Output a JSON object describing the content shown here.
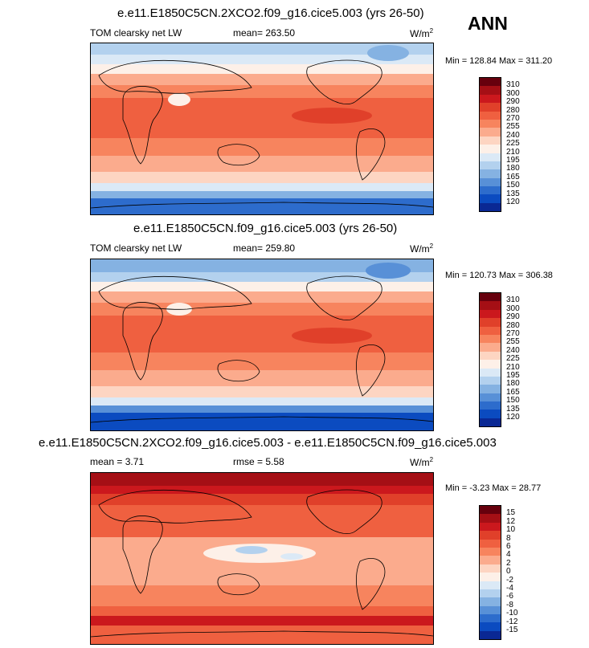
{
  "season_label": "ANN",
  "panels": [
    {
      "title": "e.e11.E1850C5CN.2XCO2.f09_g16.cice5.003 (yrs 26-50)",
      "variable": "TOM clearsky net LW",
      "stat_left": "",
      "mean": "mean= 263.50",
      "units_base": "W/m",
      "units_exp": "2",
      "minmax": "Min = 128.84 Max = 311.20",
      "colorbar": {
        "labels": [
          "310",
          "300",
          "290",
          "280",
          "270",
          "255",
          "240",
          "225",
          "210",
          "195",
          "180",
          "165",
          "150",
          "135",
          "120"
        ],
        "colors": [
          "#67000d",
          "#a50f15",
          "#cb181d",
          "#e0402a",
          "#ef6040",
          "#f7845e",
          "#fbab8d",
          "#fdd5c2",
          "#fdf0e8",
          "#dbe9f6",
          "#b3d1ee",
          "#85b2e2",
          "#5890d7",
          "#2d6ccc",
          "#0b4bc0",
          "#0a2894"
        ]
      }
    },
    {
      "title": "e.e11.E1850C5CN.f09_g16.cice5.003 (yrs 26-50)",
      "variable": "TOM clearsky net LW",
      "stat_left": "",
      "mean": "mean= 259.80",
      "units_base": "W/m",
      "units_exp": "2",
      "minmax": "Min = 120.73 Max = 306.38",
      "colorbar": {
        "labels": [
          "310",
          "300",
          "290",
          "280",
          "270",
          "255",
          "240",
          "225",
          "210",
          "195",
          "180",
          "165",
          "150",
          "135",
          "120"
        ],
        "colors": [
          "#67000d",
          "#a50f15",
          "#cb181d",
          "#e0402a",
          "#ef6040",
          "#f7845e",
          "#fbab8d",
          "#fdd5c2",
          "#fdf0e8",
          "#dbe9f6",
          "#b3d1ee",
          "#85b2e2",
          "#5890d7",
          "#2d6ccc",
          "#0b4bc0",
          "#0a2894"
        ]
      }
    },
    {
      "title": "e.e11.E1850C5CN.2XCO2.f09_g16.cice5.003 - e.e11.E1850C5CN.f09_g16.cice5.003",
      "variable": "",
      "stat_left": "mean =  3.71",
      "mean": "rmse =  5.58",
      "units_base": "W/m",
      "units_exp": "2",
      "minmax": "Min = -3.23 Max = 28.77",
      "colorbar": {
        "labels": [
          "15",
          "12",
          "10",
          "8",
          "6",
          "4",
          "2",
          "0",
          "-2",
          "-4",
          "-6",
          "-8",
          "-10",
          "-12",
          "-15"
        ],
        "colors": [
          "#67000d",
          "#a50f15",
          "#cb181d",
          "#e0402a",
          "#ef6040",
          "#f7845e",
          "#fbab8d",
          "#fdd5c2",
          "#fdf0e8",
          "#dbe9f6",
          "#b3d1ee",
          "#85b2e2",
          "#5890d7",
          "#2d6ccc",
          "#0b4bc0",
          "#0a2894"
        ]
      }
    }
  ]
}
